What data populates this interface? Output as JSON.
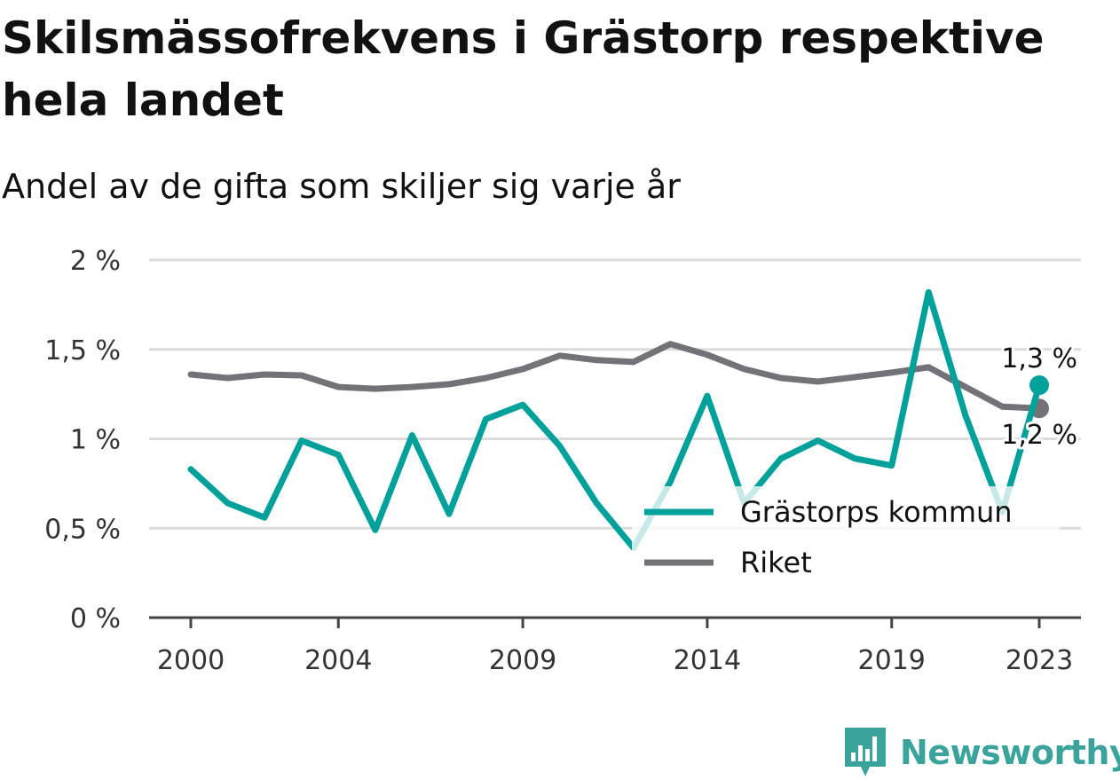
{
  "title": "Skilsmässofrekvens i Grästorp respektive hela landet",
  "subtitle": "Andel av de gifta som skiljer sig varje år",
  "brand": {
    "name": "Newsworthy",
    "icon": "newsworthy-logo-icon",
    "color": "#3aa39b"
  },
  "chart_data": {
    "type": "line",
    "x": [
      2000,
      2001,
      2002,
      2003,
      2004,
      2005,
      2006,
      2007,
      2008,
      2009,
      2010,
      2011,
      2012,
      2013,
      2014,
      2015,
      2016,
      2017,
      2018,
      2019,
      2020,
      2021,
      2022,
      2023
    ],
    "x_ticks": [
      2000,
      2004,
      2009,
      2014,
      2019,
      2023
    ],
    "x_tick_labels": [
      "2000",
      "2004",
      "2009",
      "2014",
      "2019",
      "2023"
    ],
    "ylim": [
      0,
      2
    ],
    "y_ticks": [
      0,
      0.5,
      1,
      1.5,
      2
    ],
    "y_tick_labels": [
      "0 %",
      "0,5 %",
      "1 %",
      "1,5 %",
      "2 %"
    ],
    "grid": true,
    "legend_position": "bottom-right",
    "series": [
      {
        "name": "Grästorps kommun",
        "color": "#00a19a",
        "values": [
          0.83,
          0.64,
          0.56,
          0.99,
          0.91,
          0.49,
          1.02,
          0.58,
          1.11,
          1.19,
          0.96,
          0.64,
          0.39,
          0.76,
          1.24,
          0.64,
          0.89,
          0.99,
          0.89,
          0.85,
          1.82,
          1.13,
          0.59,
          1.3
        ],
        "end_label": "1,3 %"
      },
      {
        "name": "Riket",
        "color": "#737278",
        "values": [
          1.36,
          1.34,
          1.36,
          1.355,
          1.29,
          1.28,
          1.29,
          1.305,
          1.34,
          1.39,
          1.465,
          1.44,
          1.43,
          1.53,
          1.47,
          1.39,
          1.34,
          1.32,
          1.345,
          1.37,
          1.4,
          1.29,
          1.18,
          1.17
        ],
        "end_label": "1,2 %"
      }
    ]
  }
}
